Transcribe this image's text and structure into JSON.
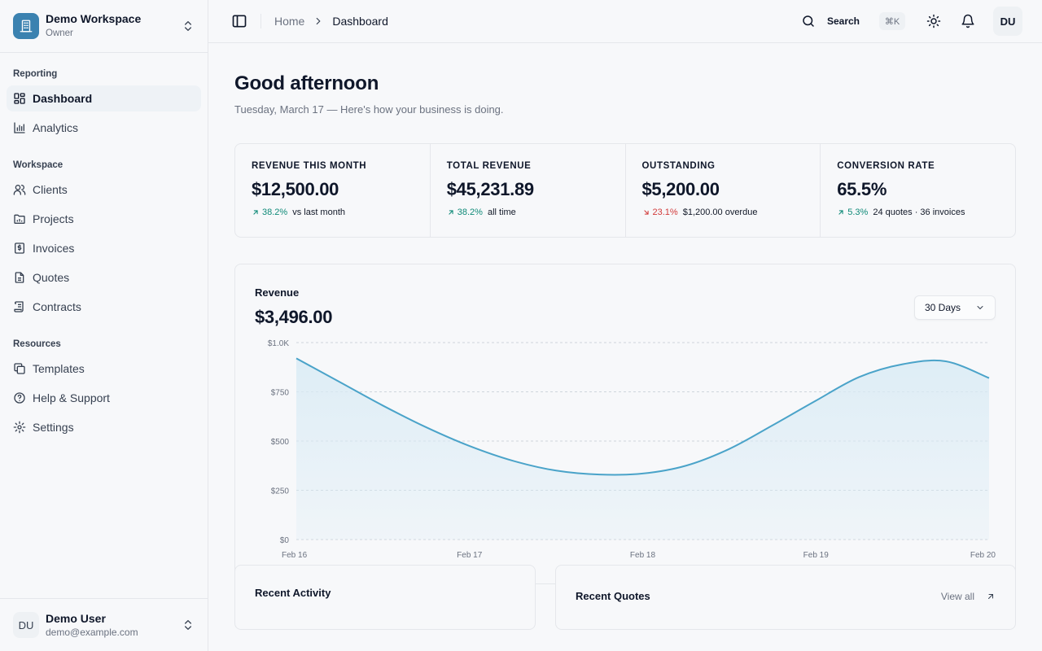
{
  "workspace": {
    "name": "Demo Workspace",
    "role": "Owner"
  },
  "nav": {
    "reporting_title": "Reporting",
    "reporting": [
      {
        "label": "Dashboard",
        "icon": "dashboard-icon"
      },
      {
        "label": "Analytics",
        "icon": "bar-chart-icon"
      }
    ],
    "workspace_title": "Workspace",
    "workspace": [
      {
        "label": "Clients",
        "icon": "users-icon"
      },
      {
        "label": "Projects",
        "icon": "folder-icon"
      },
      {
        "label": "Invoices",
        "icon": "invoice-icon"
      },
      {
        "label": "Quotes",
        "icon": "document-icon"
      },
      {
        "label": "Contracts",
        "icon": "scroll-icon"
      }
    ],
    "resources_title": "Resources",
    "resources": [
      {
        "label": "Templates",
        "icon": "copy-icon"
      },
      {
        "label": "Help & Support",
        "icon": "help-icon"
      },
      {
        "label": "Settings",
        "icon": "gear-icon"
      }
    ]
  },
  "user": {
    "initials": "DU",
    "name": "Demo User",
    "email": "demo@example.com"
  },
  "topbar": {
    "breadcrumb_home": "Home",
    "breadcrumb_current": "Dashboard",
    "search_label": "Search",
    "shortcut": "⌘K",
    "avatar": "DU"
  },
  "main": {
    "greeting": "Good afternoon",
    "subline": "Tuesday, March 17 — Here's how your business is doing."
  },
  "stats": [
    {
      "label": "REVENUE THIS MONTH",
      "value": "$12,500.00",
      "delta": "38.2%",
      "direction": "up",
      "note": "vs last month"
    },
    {
      "label": "TOTAL REVENUE",
      "value": "$45,231.89",
      "delta": "38.2%",
      "direction": "up",
      "note": "all time"
    },
    {
      "label": "OUTSTANDING",
      "value": "$5,200.00",
      "delta": "23.1%",
      "direction": "down",
      "note": "$1,200.00 overdue"
    },
    {
      "label": "CONVERSION RATE",
      "value": "65.5%",
      "delta": "5.3%",
      "direction": "up",
      "note": "24 quotes · 36 invoices"
    }
  ],
  "revenue_card": {
    "title": "Revenue",
    "total": "$3,496.00",
    "range": "30 Days"
  },
  "chart_data": {
    "type": "area",
    "x": [
      "Feb 16",
      "Feb 17",
      "Feb 18",
      "Feb 19",
      "Feb 20"
    ],
    "y_ticks": [
      "$0",
      "$250",
      "$500",
      "$750",
      "$1.0K"
    ],
    "ylim": [
      0,
      1000
    ],
    "series": [
      {
        "x": [
          0,
          0.25,
          0.5,
          0.75,
          1,
          1.25,
          1.5,
          1.75,
          2,
          2.25,
          2.5,
          2.75,
          3,
          3.25,
          3.5,
          3.75,
          4
        ],
        "values": [
          920,
          800,
          680,
          570,
          475,
          400,
          350,
          330,
          335,
          375,
          460,
          580,
          705,
          825,
          890,
          905,
          820
        ]
      }
    ],
    "colors": {
      "line": "#4aa3c9",
      "fill": "#d9ebf5"
    },
    "grid": true
  },
  "recent_activity": {
    "title": "Recent Activity"
  },
  "recent_quotes": {
    "title": "Recent Quotes",
    "view_all": "View all"
  }
}
